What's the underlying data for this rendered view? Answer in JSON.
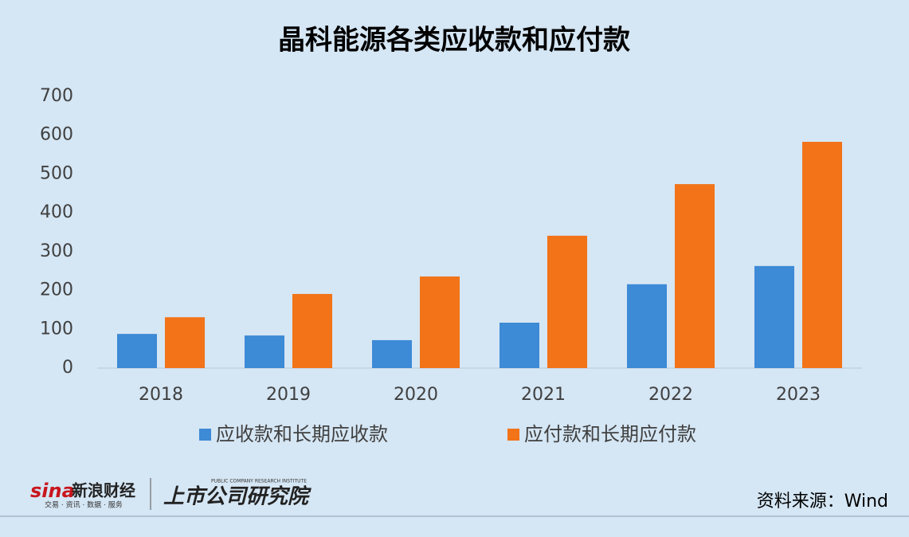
{
  "chart_data": {
    "type": "bar",
    "title": "晶科能源各类应收款和应付款",
    "categories": [
      "2018",
      "2019",
      "2020",
      "2021",
      "2022",
      "2023"
    ],
    "series": [
      {
        "name": "应收款和长期应收款",
        "color": "#3d8ad6",
        "values": [
          88,
          84,
          72,
          117,
          216,
          263
        ]
      },
      {
        "name": "应付款和长期应付款",
        "color": "#f27318",
        "values": [
          131,
          191,
          236,
          341,
          474,
          583
        ]
      }
    ],
    "ylim": [
      0,
      700
    ],
    "yticks": [
      0,
      100,
      200,
      300,
      400,
      500,
      600,
      700
    ],
    "grid": false,
    "legend": "bottom",
    "source": "资料来源：Wind"
  },
  "branding": {
    "sina": "sina",
    "sina_name": "新浪财经",
    "sina_tagline": "交易 · 资讯 · 数据 · 服务",
    "institute": "上市公司研究院",
    "institute_en": "PUBLIC COMPANY RESEARCH INSTITUTE"
  }
}
